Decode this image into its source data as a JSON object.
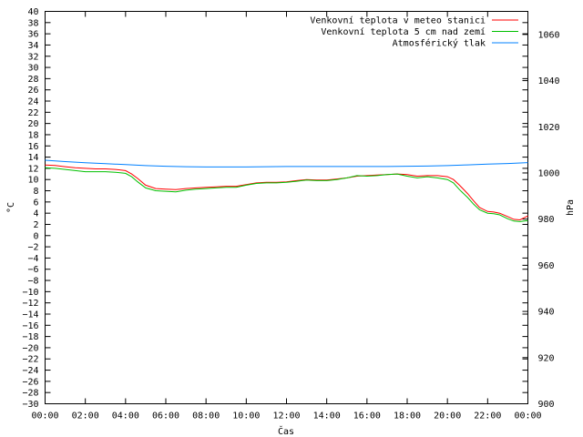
{
  "chart_data": {
    "type": "line",
    "title": "",
    "xlabel": "Čas",
    "ylabel": "°C",
    "y2label": "hPa",
    "xlim": [
      0,
      24
    ],
    "ylim": [
      -30,
      40
    ],
    "y2lim": [
      900,
      1070
    ],
    "grid": false,
    "legend_position": "top-right",
    "x_tick_labels": [
      "00:00",
      "02:00",
      "04:00",
      "06:00",
      "08:00",
      "10:00",
      "12:00",
      "14:00",
      "16:00",
      "18:00",
      "20:00",
      "22:00",
      "00:00"
    ],
    "y_ticks": [
      -30,
      -28,
      -26,
      -24,
      -22,
      -20,
      -18,
      -16,
      -14,
      -12,
      -10,
      -8,
      -6,
      -4,
      -2,
      0,
      2,
      4,
      6,
      8,
      10,
      12,
      14,
      16,
      18,
      20,
      22,
      24,
      26,
      28,
      30,
      32,
      34,
      36,
      38,
      40
    ],
    "y2_ticks": [
      900,
      920,
      940,
      960,
      980,
      1000,
      1020,
      1040,
      1060
    ],
    "series": [
      {
        "name": "Venkovní teplota v meteo stanici",
        "color": "#ff0000",
        "axis": "y",
        "x": [
          0,
          0.5,
          1,
          1.5,
          2,
          2.5,
          3,
          3.5,
          4,
          4.3,
          4.6,
          5,
          5.5,
          6,
          6.5,
          7,
          7.5,
          8,
          8.5,
          9,
          9.5,
          10,
          10.5,
          11,
          11.5,
          12,
          12.5,
          13,
          13.5,
          14,
          14.5,
          15,
          15.5,
          16,
          16.5,
          17,
          17.5,
          18,
          18.5,
          19,
          19.5,
          20,
          20.3,
          20.6,
          21,
          21.3,
          21.6,
          22,
          22.3,
          22.6,
          23,
          23.3,
          23.6,
          24
        ],
        "values": [
          12.6,
          12.5,
          12.3,
          12.1,
          12.0,
          11.9,
          11.9,
          11.8,
          11.6,
          11.0,
          10.2,
          9.0,
          8.4,
          8.3,
          8.2,
          8.4,
          8.5,
          8.6,
          8.7,
          8.8,
          8.8,
          9.1,
          9.4,
          9.5,
          9.5,
          9.6,
          9.8,
          10.0,
          9.9,
          9.9,
          10.1,
          10.3,
          10.6,
          10.7,
          10.8,
          10.9,
          11.0,
          10.9,
          10.6,
          10.7,
          10.7,
          10.5,
          10.0,
          9.0,
          7.5,
          6.2,
          5.0,
          4.3,
          4.2,
          4.0,
          3.4,
          2.9,
          2.8,
          3.5
        ]
      },
      {
        "name": "Venkovní teplota 5 cm nad zemí",
        "color": "#00c000",
        "axis": "y",
        "x": [
          0,
          0.5,
          1,
          1.5,
          2,
          2.5,
          3,
          3.5,
          4,
          4.3,
          4.6,
          5,
          5.5,
          6,
          6.5,
          7,
          7.5,
          8,
          8.5,
          9,
          9.5,
          10,
          10.5,
          11,
          11.5,
          12,
          12.5,
          13,
          13.5,
          14,
          14.5,
          15,
          15.5,
          16,
          16.5,
          17,
          17.5,
          18,
          18.5,
          19,
          19.5,
          20,
          20.3,
          20.6,
          21,
          21.3,
          21.6,
          22,
          22.3,
          22.6,
          23,
          23.3,
          23.6,
          24
        ],
        "values": [
          12.1,
          12.0,
          11.8,
          11.6,
          11.4,
          11.4,
          11.4,
          11.3,
          11.1,
          10.5,
          9.6,
          8.5,
          8.0,
          7.9,
          7.8,
          8.1,
          8.3,
          8.4,
          8.5,
          8.6,
          8.6,
          9.0,
          9.3,
          9.4,
          9.4,
          9.5,
          9.7,
          9.9,
          9.8,
          9.8,
          10.0,
          10.3,
          10.7,
          10.6,
          10.7,
          10.9,
          11.0,
          10.6,
          10.3,
          10.5,
          10.3,
          10.0,
          9.4,
          8.2,
          6.8,
          5.6,
          4.6,
          4.0,
          3.9,
          3.7,
          3.0,
          2.6,
          2.5,
          2.7
        ]
      },
      {
        "name": "Atmosférický tlak",
        "color": "#0080ff",
        "axis": "y2",
        "x": [
          0,
          1,
          2,
          3,
          4,
          5,
          6,
          7,
          8,
          9,
          10,
          11,
          12,
          13,
          14,
          15,
          16,
          17,
          18,
          19,
          20,
          21,
          22,
          23,
          24
        ],
        "values": [
          1005.5,
          1004.9,
          1004.4,
          1004.0,
          1003.6,
          1003.2,
          1002.9,
          1002.7,
          1002.6,
          1002.6,
          1002.6,
          1002.7,
          1002.8,
          1002.8,
          1002.8,
          1002.8,
          1002.8,
          1002.8,
          1002.9,
          1003.0,
          1003.2,
          1003.5,
          1003.8,
          1004.1,
          1004.5
        ]
      }
    ]
  }
}
